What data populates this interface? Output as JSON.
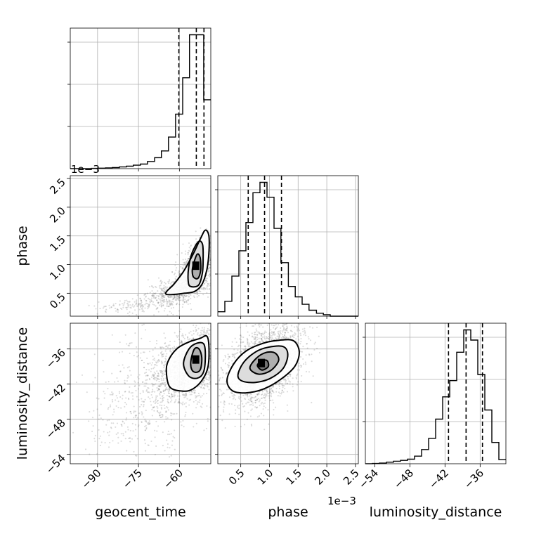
{
  "chart_data": {
    "type": "corner",
    "parameters": [
      "geocent_time",
      "phase",
      "luminosity_distance"
    ],
    "axis_labels": {
      "geocent_time": "geocent_time",
      "phase": "phase",
      "luminosity_distance": "luminosity_distance"
    },
    "ranges": {
      "geocent_time": [
        -100,
        -48.5
      ],
      "phase": [
        0.0001,
        0.00255
      ],
      "luminosity_distance": [
        -55.6,
        -31.6
      ]
    },
    "ticks": {
      "geocent_time": {
        "values": [
          -90,
          -75,
          -60
        ],
        "labels": [
          "−90",
          "−75",
          "−60"
        ]
      },
      "phase": {
        "values": [
          0.0005,
          0.001,
          0.0015,
          0.002,
          0.0025
        ],
        "labels": [
          "0.5",
          "1.0",
          "1.5",
          "2.0",
          "2.5"
        ]
      },
      "luminosity_distance": {
        "values": [
          -54,
          -48,
          -42,
          -36
        ],
        "labels": [
          "−54",
          "−48",
          "−42",
          "−36"
        ]
      }
    },
    "offset_text": {
      "phase": "1e−3"
    },
    "grid": true,
    "histograms": {
      "geocent_time": {
        "bin_edges": [
          -100,
          -97.4,
          -94.9,
          -92.3,
          -89.7,
          -87.1,
          -84.6,
          -82,
          -79.4,
          -76.9,
          -74.3,
          -71.7,
          -69.1,
          -66.6,
          -64,
          -61.4,
          -58.8,
          -56.3,
          -53.7,
          -51.1,
          -48.5
        ],
        "counts": [
          0,
          0,
          0.1,
          0.3,
          0.5,
          0.8,
          1.1,
          1.8,
          2.6,
          3.6,
          4.8,
          7.5,
          11.5,
          18.5,
          33,
          57,
          95,
          140,
          140,
          72
        ],
        "quantiles": [
          -60.2,
          -53.8,
          -51.0
        ]
      },
      "phase": {
        "bin_edges": [
          0.0001,
          0.000223,
          0.000345,
          0.000468,
          0.00059,
          0.000713,
          0.000835,
          0.000958,
          0.00108,
          0.0012,
          0.00133,
          0.00145,
          0.00157,
          0.00169,
          0.00182,
          0.00194,
          0.00206,
          0.00218,
          0.00231,
          0.00243,
          0.00255
        ],
        "counts": [
          3,
          10,
          27,
          44,
          63,
          83,
          90,
          80,
          59,
          36,
          20,
          13,
          8,
          4,
          2,
          1,
          0,
          0,
          0,
          0
        ],
        "quantiles": [
          0.00063,
          0.000915,
          0.00121
        ]
      },
      "luminosity_distance": {
        "bin_edges": [
          -55.6,
          -54.4,
          -53.2,
          -52,
          -50.8,
          -49.6,
          -48.4,
          -47.2,
          -46,
          -44.8,
          -43.6,
          -42.4,
          -41.2,
          -40,
          -38.8,
          -37.6,
          -36.4,
          -35.2,
          -34,
          -32.8,
          -31.6
        ],
        "counts": [
          0.1,
          0.3,
          0.6,
          1.5,
          2.5,
          3.3,
          4.5,
          7.5,
          14,
          25,
          44,
          66,
          82,
          110,
          132,
          122,
          88,
          53,
          21,
          4
        ],
        "quantiles": [
          -41.4,
          -38.4,
          -35.6
        ]
      }
    },
    "pairs": [
      {
        "x": "geocent_time",
        "y": "phase",
        "blobs": [
          {
            "center": [
              -59,
              0.0006
            ],
            "spread": [
              6.5,
              0.00013
            ],
            "corr": 0.6,
            "n": 520
          },
          {
            "center": [
              -54,
              0.00095
            ],
            "spread": [
              4.3,
              0.0003
            ],
            "corr": 0.75,
            "n": 1100
          },
          {
            "center": [
              -74,
              0.0003
            ],
            "spread": [
              8,
              7e-05
            ],
            "corr": 0.4,
            "n": 160
          }
        ],
        "contours": [
          [
            [
              -64.7,
              0.00048
            ],
            [
              -62,
              0.00048
            ],
            [
              -58,
              0.0005
            ],
            [
              -54.5,
              0.00053
            ],
            [
              -51.8,
              0.00065
            ],
            [
              -50,
              0.0009
            ],
            [
              -49.2,
              0.0012
            ],
            [
              -49.2,
              0.0015
            ],
            [
              -50.5,
              0.0016
            ],
            [
              -52.3,
              0.00145
            ],
            [
              -55,
              0.00118
            ],
            [
              -58.5,
              0.00088
            ],
            [
              -62,
              0.00066
            ],
            [
              -64.7,
              0.00053
            ]
          ],
          [
            [
              -56,
              0.00062
            ],
            [
              -53,
              0.00064
            ],
            [
              -51.6,
              0.00085
            ],
            [
              -51.3,
              0.0011
            ],
            [
              -51.5,
              0.00135
            ],
            [
              -53,
              0.0014
            ],
            [
              -55.4,
              0.0012
            ],
            [
              -56.6,
              0.00095
            ],
            [
              -56.8,
              0.00072
            ]
          ],
          [
            [
              -54.8,
              0.00078
            ],
            [
              -53.2,
              0.00076
            ],
            [
              -52.2,
              0.0009
            ],
            [
              -52.4,
              0.00112
            ],
            [
              -53.5,
              0.00118
            ],
            [
              -54.9,
              0.001
            ],
            [
              -55.3,
              0.00088
            ]
          ]
        ],
        "peak": [
          -54,
          0.00098
        ]
      },
      {
        "x": "geocent_time",
        "y": "luminosity_distance",
        "blobs": [
          {
            "center": [
              -56,
              -38.8
            ],
            "spread": [
              6.5,
              3
            ],
            "corr": 0.35,
            "n": 1500
          },
          {
            "center": [
              -72,
              -44
            ],
            "spread": [
              11,
              5.5
            ],
            "corr": 0.3,
            "n": 550
          }
        ],
        "contours": [
          [
            [
              -64.8,
              -39.5
            ],
            [
              -63.5,
              -37.5
            ],
            [
              -60.5,
              -35.8
            ],
            [
              -56.5,
              -34.8
            ],
            [
              -52.5,
              -34.2
            ],
            [
              -50,
              -33.8
            ],
            [
              -49.2,
              -35.5
            ],
            [
              -49.5,
              -39
            ],
            [
              -51.5,
              -41.2
            ],
            [
              -55,
              -42.8
            ],
            [
              -58.5,
              -43.2
            ],
            [
              -63.5,
              -42.5
            ]
          ],
          [
            [
              -58.5,
              -38.5
            ],
            [
              -56.5,
              -36
            ],
            [
              -53.5,
              -35
            ],
            [
              -51,
              -35.2
            ],
            [
              -50.5,
              -37.5
            ],
            [
              -51.2,
              -40
            ],
            [
              -53.5,
              -41
            ],
            [
              -56.6,
              -40.6
            ]
          ],
          [
            [
              -55.8,
              -38
            ],
            [
              -54.5,
              -36
            ],
            [
              -52.8,
              -36
            ],
            [
              -51.8,
              -37.5
            ],
            [
              -52.3,
              -39.5
            ],
            [
              -54,
              -40
            ],
            [
              -55.5,
              -39.5
            ]
          ]
        ],
        "peak": [
          -54,
          -37.8
        ]
      },
      {
        "x": "phase",
        "y": "luminosity_distance",
        "blobs": [
          {
            "center": [
              0.0009,
              -38.7
            ],
            "spread": [
              0.00033,
              3.6
            ],
            "corr": 0.42,
            "n": 2200
          }
        ],
        "contours": [
          [
            [
              0.00026,
              -41.3
            ],
            [
              0.00038,
              -38.5
            ],
            [
              0.0006,
              -36.3
            ],
            [
              0.0009,
              -35
            ],
            [
              0.00117,
              -34.5
            ],
            [
              0.00142,
              -34.6
            ],
            [
              0.00152,
              -36.5
            ],
            [
              0.00144,
              -39
            ],
            [
              0.00118,
              -41.3
            ],
            [
              0.00088,
              -42.9
            ],
            [
              0.00058,
              -43.5
            ],
            [
              0.00035,
              -43.1
            ]
          ],
          [
            [
              0.00045,
              -40.5
            ],
            [
              0.00055,
              -38.3
            ],
            [
              0.00076,
              -36.5
            ],
            [
              0.00098,
              -35.7
            ],
            [
              0.00124,
              -35.6
            ],
            [
              0.00132,
              -37
            ],
            [
              0.00124,
              -39.3
            ],
            [
              0.00102,
              -41
            ],
            [
              0.00076,
              -41.7
            ],
            [
              0.00053,
              -41.5
            ]
          ],
          [
            [
              0.00066,
              -39.3
            ],
            [
              0.00077,
              -37.6
            ],
            [
              0.00094,
              -36.6
            ],
            [
              0.0011,
              -36.7
            ],
            [
              0.00116,
              -38
            ],
            [
              0.00102,
              -39.7
            ],
            [
              0.00081,
              -40.3
            ]
          ],
          [
            [
              0.00079,
              -38.8
            ],
            [
              0.00087,
              -38
            ],
            [
              0.00096,
              -38
            ],
            [
              0.00098,
              -39
            ],
            [
              0.00087,
              -39.6
            ]
          ]
        ],
        "peak": [
          0.00086,
          -38.4
        ]
      }
    ]
  }
}
